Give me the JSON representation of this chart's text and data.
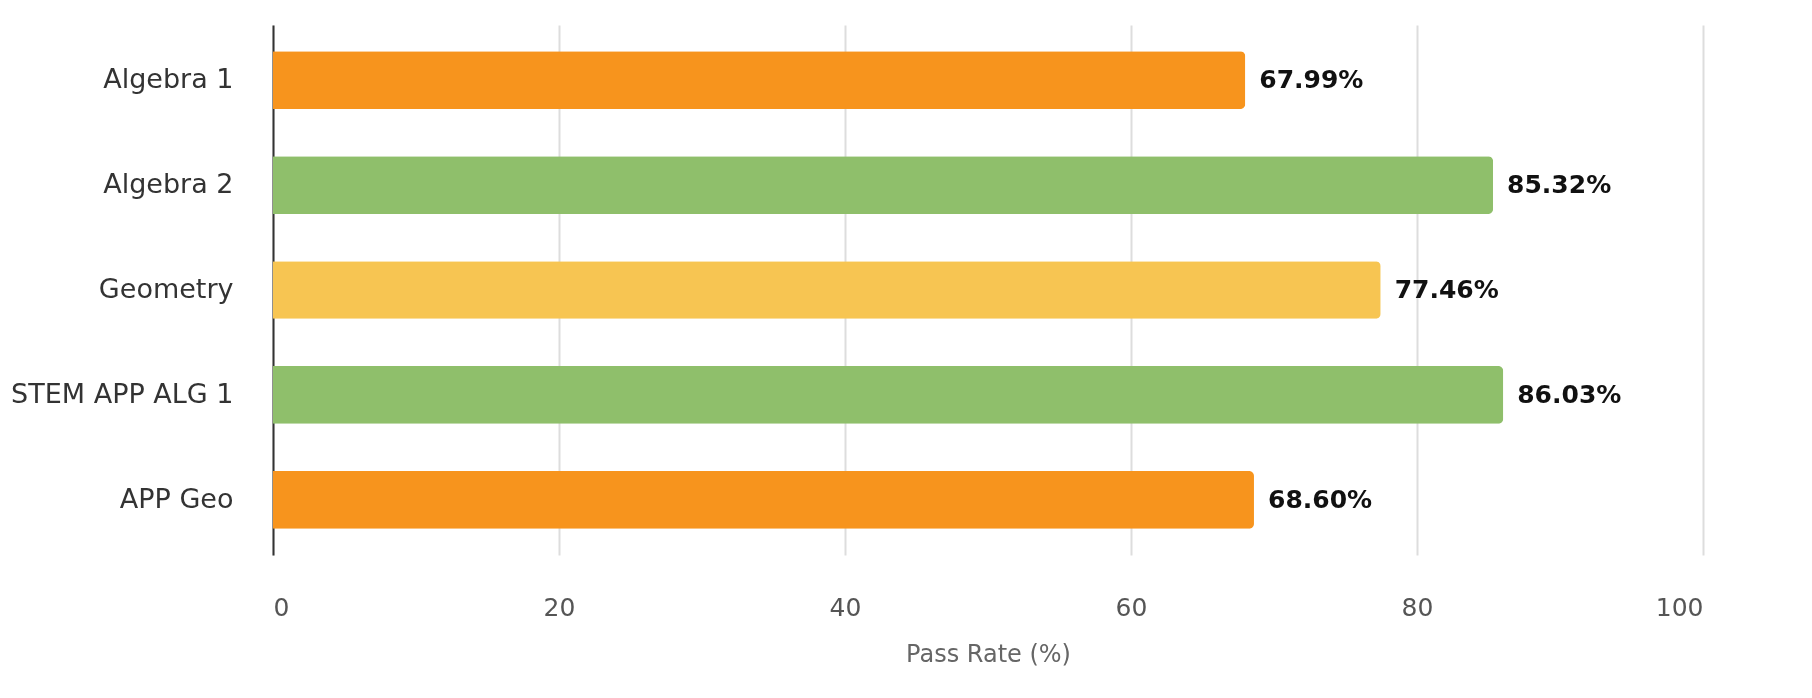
{
  "chart_data": {
    "type": "bar",
    "orientation": "horizontal",
    "xlabel": "Pass Rate (%)",
    "categories": [
      "Algebra 1",
      "Algebra 2",
      "Geometry",
      "STEM APP ALG 1",
      "APP Geo"
    ],
    "values": [
      67.99,
      85.32,
      77.46,
      86.03,
      68.6
    ],
    "colors": [
      "#f7941d",
      "#8fbf6b",
      "#f7c552",
      "#8fbf6b",
      "#f7941d"
    ],
    "value_labels": [
      "67.99%",
      "85.32%",
      "77.46%",
      "86.03%",
      "68.60%"
    ],
    "xlim": [
      0,
      100
    ],
    "xticks": [
      0,
      20,
      40,
      60,
      80,
      100
    ],
    "grid": "x"
  }
}
